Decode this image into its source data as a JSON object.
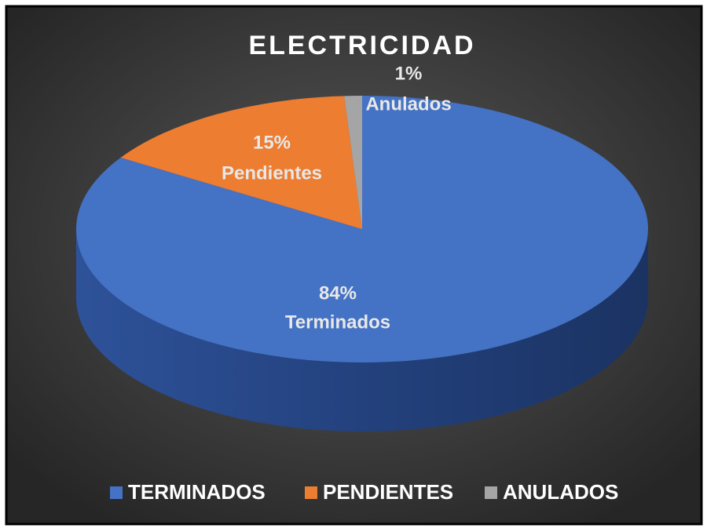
{
  "chart_data": {
    "type": "pie",
    "title": "ELECTRICIDAD",
    "categories": [
      "Terminados",
      "Pendientes",
      "Anulados"
    ],
    "legend": [
      "TERMINADOS",
      "PENDIENTES",
      "ANULADOS"
    ],
    "values": [
      84,
      15,
      1
    ],
    "value_labels": [
      "84%",
      "15%",
      "1%"
    ],
    "colors": [
      "#4472c4",
      "#ed7d31",
      "#a5a5a5"
    ],
    "legend_position": "bottom"
  }
}
